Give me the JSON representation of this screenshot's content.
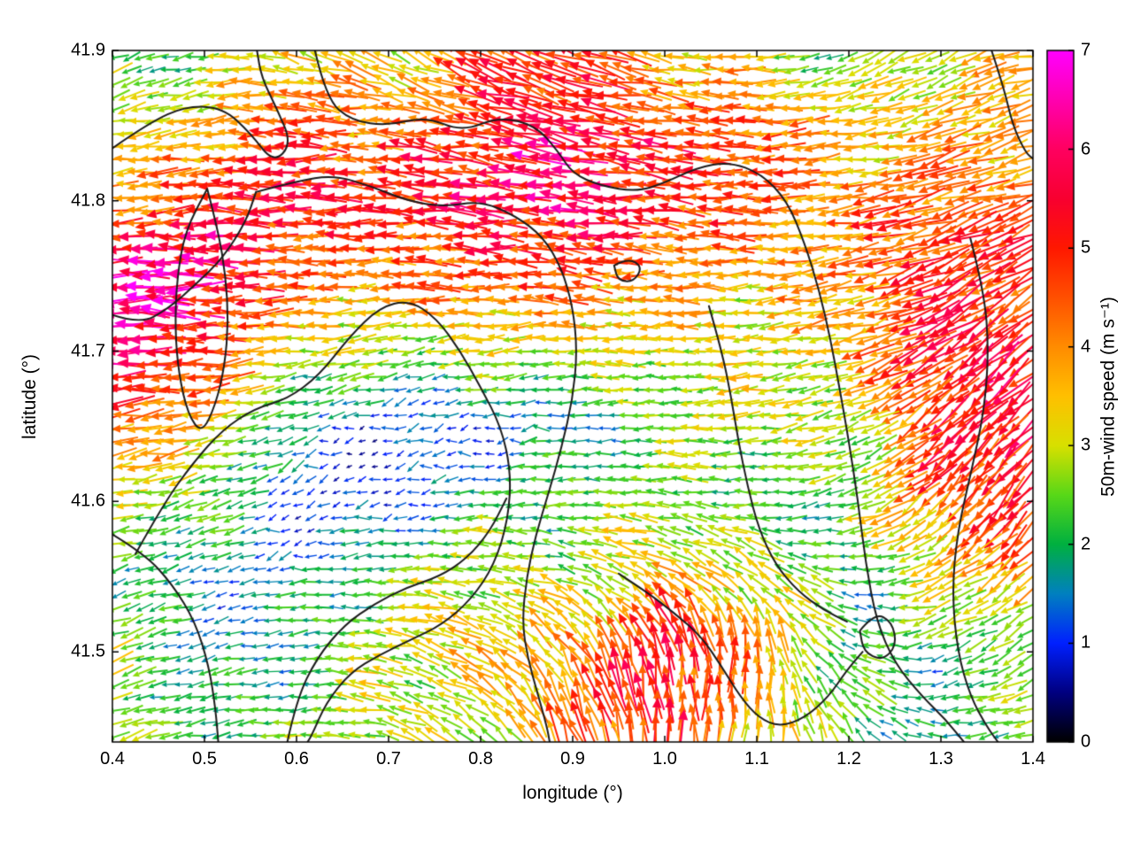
{
  "chart_data": {
    "type": "quiver",
    "title": "",
    "xlabel": "longitude (°)",
    "ylabel": "latitude (°)",
    "xlim": [
      0.4,
      1.4
    ],
    "ylim": [
      41.44,
      41.9
    ],
    "grid": "off",
    "xticks": {
      "values": [
        0.4,
        0.5,
        0.6,
        0.7,
        0.8,
        0.9,
        1.0,
        1.1,
        1.2,
        1.3,
        1.4
      ],
      "labels": [
        "0.4",
        "0.5",
        "0.6",
        "0.7",
        "0.8",
        "0.9",
        "1.0",
        "1.1",
        "1.2",
        "1.3",
        "1.4"
      ]
    },
    "yticks": {
      "values": [
        41.5,
        41.6,
        41.7,
        41.8,
        41.9
      ],
      "labels": [
        "41.5",
        "41.6",
        "41.7",
        "41.8",
        "41.9"
      ]
    },
    "colorbar": {
      "label": "50m-wind speed (m s⁻¹)",
      "min": 0,
      "max": 7,
      "ticks": {
        "values": [
          0,
          1,
          2,
          3,
          4,
          5,
          6,
          7
        ],
        "labels": [
          "0",
          "1",
          "2",
          "3",
          "4",
          "5",
          "6",
          "7"
        ]
      },
      "colormap_stops": [
        [
          0.0,
          "#000000"
        ],
        [
          0.5,
          "#000080"
        ],
        [
          1.0,
          "#0020ff"
        ],
        [
          1.5,
          "#0080c0"
        ],
        [
          2.0,
          "#00b040"
        ],
        [
          2.5,
          "#58d818"
        ],
        [
          3.0,
          "#d8e000"
        ],
        [
          3.5,
          "#ffc000"
        ],
        [
          4.0,
          "#ff8c00"
        ],
        [
          4.5,
          "#ff5000"
        ],
        [
          5.0,
          "#ff1800"
        ],
        [
          5.5,
          "#f80030"
        ],
        [
          6.0,
          "#ff0060"
        ],
        [
          6.5,
          "#ff00b0"
        ],
        [
          7.0,
          "#ff00ff"
        ]
      ]
    },
    "wind_field": {
      "lon_nodes": [
        0.4,
        0.5,
        0.6,
        0.7,
        0.8,
        0.9,
        1.0,
        1.1,
        1.2,
        1.3,
        1.4
      ],
      "lat_nodes": [
        41.9,
        41.85,
        41.8,
        41.75,
        41.7,
        41.65,
        41.6,
        41.55,
        41.5,
        41.44
      ],
      "speed_ms": [
        [
          2.5,
          2.0,
          3.5,
          3.0,
          4.5,
          5.0,
          3.5,
          3.0,
          2.0,
          3.0,
          3.5
        ],
        [
          3.0,
          3.5,
          4.5,
          4.0,
          5.0,
          5.5,
          5.0,
          4.5,
          3.5,
          3.5,
          4.0
        ],
        [
          4.0,
          5.0,
          5.5,
          5.0,
          5.5,
          6.0,
          5.0,
          4.5,
          4.0,
          4.5,
          4.0
        ],
        [
          6.5,
          6.0,
          4.5,
          4.0,
          4.5,
          4.5,
          4.0,
          3.5,
          4.0,
          5.0,
          5.0
        ],
        [
          6.5,
          5.0,
          3.0,
          2.5,
          3.0,
          3.0,
          3.0,
          3.0,
          3.5,
          5.5,
          5.0
        ],
        [
          4.0,
          3.5,
          1.5,
          1.0,
          1.0,
          1.5,
          2.5,
          3.0,
          2.5,
          5.0,
          5.5
        ],
        [
          3.0,
          2.5,
          1.0,
          1.0,
          2.0,
          2.5,
          2.5,
          2.0,
          2.5,
          4.5,
          5.0
        ],
        [
          2.0,
          1.5,
          1.5,
          2.5,
          3.0,
          2.5,
          3.5,
          3.0,
          2.0,
          3.0,
          4.0
        ],
        [
          3.0,
          1.5,
          2.0,
          3.0,
          3.5,
          4.0,
          5.5,
          4.0,
          2.0,
          2.0,
          2.5
        ],
        [
          2.5,
          2.0,
          2.5,
          3.0,
          2.5,
          4.5,
          5.0,
          3.5,
          2.5,
          1.5,
          3.0
        ]
      ],
      "direction_deg": [
        [
          200,
          190,
          160,
          150,
          150,
          160,
          170,
          180,
          200,
          210,
          190
        ],
        [
          190,
          185,
          180,
          175,
          170,
          170,
          175,
          180,
          190,
          200,
          195
        ],
        [
          185,
          180,
          180,
          178,
          175,
          172,
          175,
          180,
          185,
          195,
          200
        ],
        [
          180,
          178,
          180,
          182,
          178,
          175,
          178,
          182,
          190,
          205,
          210
        ],
        [
          180,
          182,
          185,
          190,
          185,
          180,
          180,
          185,
          195,
          215,
          220
        ],
        [
          185,
          190,
          195,
          200,
          190,
          185,
          180,
          185,
          200,
          220,
          225
        ],
        [
          190,
          195,
          200,
          195,
          185,
          180,
          175,
          180,
          200,
          225,
          230
        ],
        [
          195,
          200,
          190,
          180,
          170,
          160,
          150,
          140,
          170,
          210,
          220
        ],
        [
          200,
          195,
          185,
          170,
          150,
          120,
          95,
          90,
          150,
          200,
          210
        ],
        [
          195,
          190,
          180,
          160,
          140,
          110,
          90,
          85,
          120,
          180,
          200
        ]
      ]
    },
    "contour_color": "#1a1a1a",
    "terrain_contours": [
      [
        [
          0.4,
          41.835
        ],
        [
          0.44,
          41.852
        ],
        [
          0.48,
          41.863
        ],
        [
          0.52,
          41.862
        ],
        [
          0.55,
          41.845
        ],
        [
          0.575,
          41.825
        ],
        [
          0.595,
          41.838
        ],
        [
          0.578,
          41.862
        ],
        [
          0.562,
          41.882
        ],
        [
          0.557,
          41.9
        ]
      ],
      [
        [
          0.62,
          41.9
        ],
        [
          0.632,
          41.868
        ],
        [
          0.66,
          41.853
        ],
        [
          0.7,
          41.85
        ],
        [
          0.74,
          41.856
        ],
        [
          0.78,
          41.846
        ],
        [
          0.82,
          41.856
        ],
        [
          0.86,
          41.85
        ],
        [
          0.884,
          41.833
        ],
        [
          0.9,
          41.818
        ],
        [
          0.93,
          41.81
        ],
        [
          0.97,
          41.806
        ],
        [
          1.0,
          41.812
        ],
        [
          1.035,
          41.822
        ],
        [
          1.07,
          41.826
        ],
        [
          1.105,
          41.818
        ],
        [
          1.133,
          41.8
        ],
        [
          1.152,
          41.772
        ],
        [
          1.168,
          41.74
        ],
        [
          1.18,
          41.708
        ],
        [
          1.19,
          41.675
        ],
        [
          1.2,
          41.64
        ],
        [
          1.21,
          41.6
        ],
        [
          1.218,
          41.56
        ],
        [
          1.23,
          41.52
        ],
        [
          1.25,
          41.492
        ],
        [
          1.28,
          41.47
        ],
        [
          1.305,
          41.455
        ],
        [
          1.325,
          41.44
        ]
      ],
      [
        [
          0.557,
          41.806
        ],
        [
          0.6,
          41.813
        ],
        [
          0.64,
          41.817
        ],
        [
          0.68,
          41.81
        ],
        [
          0.72,
          41.8
        ],
        [
          0.76,
          41.796
        ],
        [
          0.8,
          41.8
        ],
        [
          0.838,
          41.79
        ],
        [
          0.868,
          41.776
        ],
        [
          0.888,
          41.755
        ],
        [
          0.9,
          41.73
        ],
        [
          0.905,
          41.7
        ],
        [
          0.9,
          41.668
        ],
        [
          0.888,
          41.636
        ],
        [
          0.874,
          41.606
        ],
        [
          0.86,
          41.578
        ],
        [
          0.85,
          41.55
        ],
        [
          0.845,
          41.52
        ],
        [
          0.851,
          41.496
        ],
        [
          0.862,
          41.472
        ],
        [
          0.872,
          41.45
        ],
        [
          0.875,
          41.44
        ]
      ],
      [
        [
          0.503,
          41.808
        ],
        [
          0.515,
          41.78
        ],
        [
          0.523,
          41.75
        ],
        [
          0.526,
          41.72
        ],
        [
          0.522,
          41.69
        ],
        [
          0.512,
          41.664
        ],
        [
          0.497,
          41.645
        ],
        [
          0.482,
          41.658
        ],
        [
          0.472,
          41.685
        ],
        [
          0.468,
          41.715
        ],
        [
          0.47,
          41.748
        ],
        [
          0.479,
          41.78
        ],
        [
          0.503,
          41.808
        ]
      ],
      [
        [
          0.4,
          41.724
        ],
        [
          0.43,
          41.718
        ],
        [
          0.46,
          41.728
        ],
        [
          0.49,
          41.744
        ],
        [
          0.52,
          41.762
        ],
        [
          0.545,
          41.786
        ],
        [
          0.556,
          41.806
        ]
      ],
      [
        [
          0.425,
          41.565
        ],
        [
          0.455,
          41.598
        ],
        [
          0.488,
          41.626
        ],
        [
          0.52,
          41.648
        ],
        [
          0.555,
          41.662
        ],
        [
          0.59,
          41.668
        ],
        [
          0.625,
          41.684
        ],
        [
          0.658,
          41.71
        ],
        [
          0.69,
          41.729
        ],
        [
          0.722,
          41.734
        ],
        [
          0.752,
          41.722
        ],
        [
          0.778,
          41.7
        ],
        [
          0.8,
          41.676
        ],
        [
          0.822,
          41.65
        ],
        [
          0.833,
          41.62
        ],
        [
          0.83,
          41.588
        ],
        [
          0.815,
          41.558
        ],
        [
          0.79,
          41.535
        ],
        [
          0.758,
          41.518
        ],
        [
          0.724,
          41.508
        ],
        [
          0.69,
          41.498
        ],
        [
          0.658,
          41.486
        ],
        [
          0.632,
          41.466
        ],
        [
          0.617,
          41.445
        ],
        [
          0.612,
          41.44
        ]
      ],
      [
        [
          0.59,
          41.44
        ],
        [
          0.6,
          41.468
        ],
        [
          0.622,
          41.496
        ],
        [
          0.652,
          41.518
        ],
        [
          0.685,
          41.532
        ],
        [
          0.72,
          41.543
        ],
        [
          0.755,
          41.55
        ],
        [
          0.785,
          41.562
        ],
        [
          0.81,
          41.58
        ],
        [
          0.828,
          41.602
        ]
      ],
      [
        [
          0.95,
          41.552
        ],
        [
          0.98,
          41.54
        ],
        [
          1.01,
          41.526
        ],
        [
          1.04,
          41.51
        ],
        [
          1.062,
          41.49
        ],
        [
          1.082,
          41.47
        ],
        [
          1.102,
          41.456
        ],
        [
          1.125,
          41.45
        ],
        [
          1.152,
          41.456
        ],
        [
          1.178,
          41.47
        ],
        [
          1.198,
          41.488
        ],
        [
          1.215,
          41.5
        ]
      ],
      [
        [
          1.212,
          41.514
        ],
        [
          1.228,
          41.526
        ],
        [
          1.247,
          41.52
        ],
        [
          1.252,
          41.504
        ],
        [
          1.236,
          41.494
        ],
        [
          1.216,
          41.5
        ],
        [
          1.212,
          41.514
        ]
      ],
      [
        [
          1.332,
          41.775
        ],
        [
          1.347,
          41.74
        ],
        [
          1.352,
          41.7
        ],
        [
          1.347,
          41.66
        ],
        [
          1.333,
          41.62
        ],
        [
          1.318,
          41.58
        ],
        [
          1.312,
          41.54
        ],
        [
          1.318,
          41.5
        ],
        [
          1.332,
          41.47
        ],
        [
          1.35,
          41.45
        ],
        [
          1.362,
          41.44
        ]
      ],
      [
        [
          0.945,
          41.757
        ],
        [
          0.96,
          41.762
        ],
        [
          0.976,
          41.756
        ],
        [
          0.966,
          41.746
        ],
        [
          0.949,
          41.747
        ],
        [
          0.945,
          41.757
        ]
      ],
      [
        [
          0.4,
          41.578
        ],
        [
          0.435,
          41.565
        ],
        [
          0.465,
          41.545
        ],
        [
          0.49,
          41.52
        ],
        [
          0.505,
          41.49
        ],
        [
          0.512,
          41.462
        ],
        [
          0.515,
          41.44
        ]
      ],
      [
        [
          1.048,
          41.73
        ],
        [
          1.062,
          41.7
        ],
        [
          1.072,
          41.67
        ],
        [
          1.08,
          41.64
        ],
        [
          1.09,
          41.61
        ],
        [
          1.102,
          41.582
        ],
        [
          1.12,
          41.558
        ],
        [
          1.145,
          41.54
        ],
        [
          1.172,
          41.528
        ],
        [
          1.198,
          41.52
        ]
      ],
      [
        [
          1.355,
          41.9
        ],
        [
          1.368,
          41.876
        ],
        [
          1.378,
          41.85
        ],
        [
          1.392,
          41.832
        ],
        [
          1.4,
          41.828
        ]
      ]
    ]
  }
}
